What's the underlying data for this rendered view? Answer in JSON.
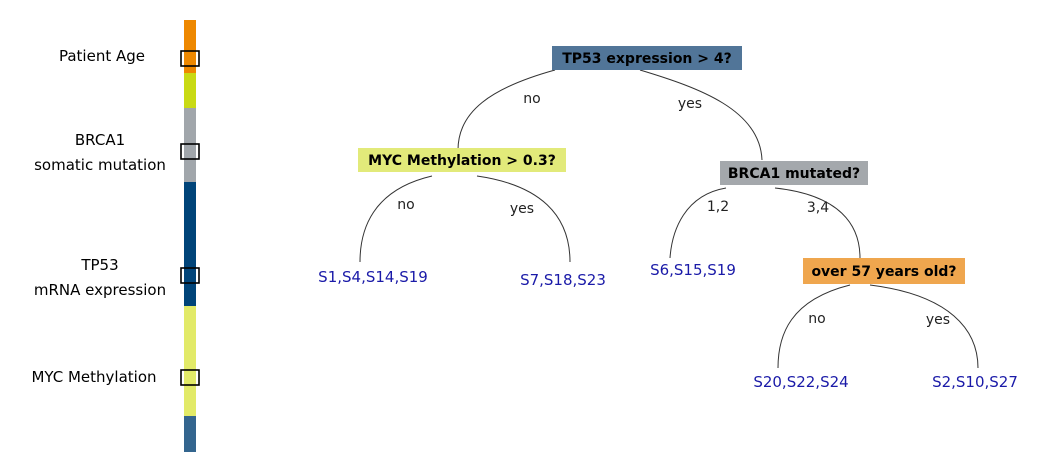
{
  "legend": {
    "segments": [
      {
        "color": "#ee8800"
      },
      {
        "color": "#c9da14"
      },
      {
        "color": "#a1a6ab"
      },
      {
        "color": "#004479"
      },
      {
        "color": "#e2ea68"
      },
      {
        "color": "#33658e"
      }
    ],
    "labels": [
      {
        "lines": [
          "Patient Age"
        ]
      },
      {
        "lines": [
          "BRCA1",
          "somatic mutation"
        ]
      },
      {
        "lines": [
          "TP53",
          "mRNA expression"
        ]
      },
      {
        "lines": [
          "MYC Methylation"
        ]
      }
    ]
  },
  "tree": {
    "nodes": {
      "root": {
        "text": "TP53 expression > 4?",
        "color": "#517598"
      },
      "myc": {
        "text": "MYC Methylation > 0.3?",
        "color": "#e2ea7a"
      },
      "brca1": {
        "text": "BRCA1 mutated?",
        "color": "#a4a8ac"
      },
      "age": {
        "text": "over 57 years old?",
        "color": "#efa64e"
      }
    },
    "edges": {
      "root_no": "no",
      "root_yes": "yes",
      "myc_no": "no",
      "myc_yes": "yes",
      "brca1_12": "1,2",
      "brca1_34": "3,4",
      "age_no": "no",
      "age_yes": "yes"
    },
    "leaves": {
      "leaf1": "S1,S4,S14,S19",
      "leaf2": "S7,S18,S23",
      "leaf3": "S6,S15,S19",
      "leaf4": "S20,S22,S24",
      "leaf5": "S2,S10,S27"
    }
  }
}
